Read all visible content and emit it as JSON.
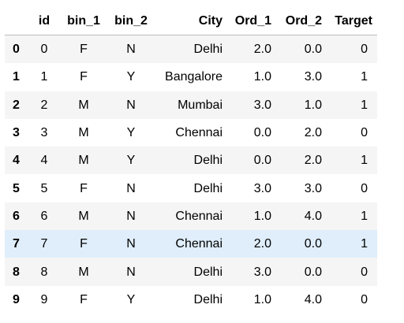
{
  "table": {
    "index_header": "",
    "columns": [
      "id",
      "bin_1",
      "bin_2",
      "City",
      "Ord_1",
      "Ord_2",
      "Target"
    ],
    "rows": [
      {
        "index": "0",
        "cells": [
          "0",
          "F",
          "N",
          "Delhi",
          "2.0",
          "0.0",
          "0"
        ]
      },
      {
        "index": "1",
        "cells": [
          "1",
          "F",
          "Y",
          "Bangalore",
          "1.0",
          "3.0",
          "1"
        ]
      },
      {
        "index": "2",
        "cells": [
          "2",
          "M",
          "N",
          "Mumbai",
          "3.0",
          "1.0",
          "1"
        ]
      },
      {
        "index": "3",
        "cells": [
          "3",
          "M",
          "Y",
          "Chennai",
          "0.0",
          "2.0",
          "0"
        ]
      },
      {
        "index": "4",
        "cells": [
          "4",
          "M",
          "Y",
          "Delhi",
          "0.0",
          "2.0",
          "1"
        ]
      },
      {
        "index": "5",
        "cells": [
          "5",
          "F",
          "N",
          "Delhi",
          "3.0",
          "3.0",
          "0"
        ]
      },
      {
        "index": "6",
        "cells": [
          "6",
          "M",
          "N",
          "Chennai",
          "1.0",
          "4.0",
          "1"
        ]
      },
      {
        "index": "7",
        "cells": [
          "7",
          "F",
          "N",
          "Chennai",
          "2.0",
          "0.0",
          "1"
        ]
      },
      {
        "index": "8",
        "cells": [
          "8",
          "M",
          "N",
          "Delhi",
          "3.0",
          "0.0",
          "0"
        ]
      },
      {
        "index": "9",
        "cells": [
          "9",
          "F",
          "Y",
          "Delhi",
          "1.0",
          "4.0",
          "0"
        ]
      }
    ],
    "highlighted_row_index": 7
  },
  "colors": {
    "stripe": "#f5f5f5",
    "hover_row": "#dfeefa",
    "header_rule": "#bdbdbd",
    "text": "#000000"
  }
}
